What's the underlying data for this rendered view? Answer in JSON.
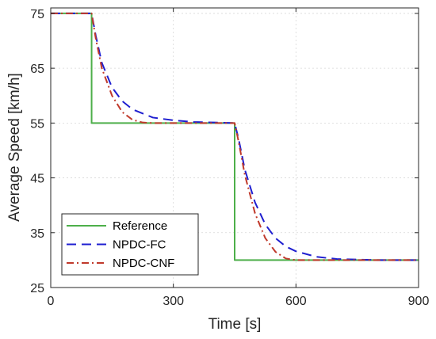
{
  "chart_data": {
    "type": "line",
    "title": "",
    "xlabel": "Time [s]",
    "ylabel": "Average Speed [km/h]",
    "xlim": [
      0,
      900
    ],
    "ylim": [
      25,
      76
    ],
    "xticks": [
      0,
      300,
      600,
      900
    ],
    "yticks": [
      25,
      35,
      45,
      55,
      65,
      75
    ],
    "grid": true,
    "legend_position": "bottom-left",
    "series": [
      {
        "name": "Reference",
        "color": "#4daf4a",
        "style": "solid",
        "x": [
          0,
          100,
          100,
          450,
          450,
          900
        ],
        "y": [
          75,
          75,
          55,
          55,
          30,
          30
        ]
      },
      {
        "name": "NPDC-FC",
        "color": "#1f1fd0",
        "style": "dashed",
        "x": [
          0,
          100,
          110,
          125,
          150,
          175,
          200,
          250,
          300,
          350,
          400,
          450,
          460,
          475,
          500,
          525,
          550,
          575,
          600,
          650,
          700,
          750,
          800,
          900
        ],
        "y": [
          75,
          75,
          71,
          66,
          61.5,
          59,
          57.5,
          56,
          55.5,
          55.2,
          55.1,
          55,
          52,
          46.5,
          40.5,
          36.5,
          34,
          32.5,
          31.6,
          30.6,
          30.2,
          30.1,
          30,
          30
        ]
      },
      {
        "name": "NPDC-CNF",
        "color": "#c0392b",
        "style": "dashdot",
        "x": [
          0,
          100,
          110,
          125,
          150,
          175,
          200,
          225,
          250,
          300,
          350,
          400,
          450,
          460,
          475,
          500,
          525,
          550,
          575,
          600,
          650,
          700,
          900
        ],
        "y": [
          75,
          75,
          70.5,
          65,
          60,
          57,
          55.6,
          55.1,
          55,
          55,
          55,
          55,
          55,
          51.5,
          45.5,
          38.5,
          34,
          31.5,
          30.3,
          30,
          30,
          30,
          30
        ]
      }
    ]
  }
}
